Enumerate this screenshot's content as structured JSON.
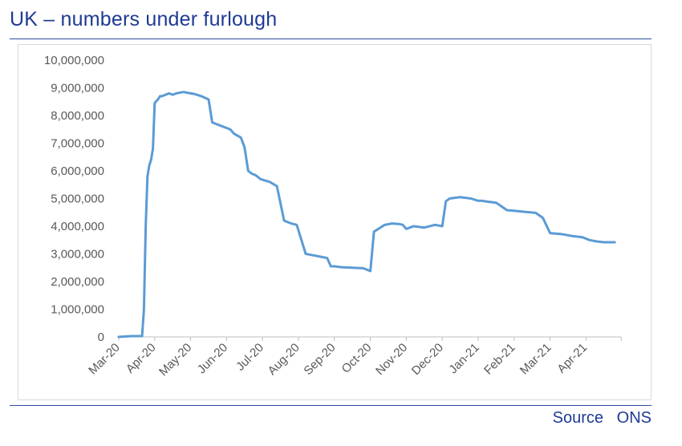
{
  "header": {
    "title": "UK – numbers under furlough"
  },
  "footer": {
    "source": "Source   ONS"
  },
  "chart_data": {
    "type": "line",
    "title": "UK – numbers under furlough",
    "xlabel": "",
    "ylabel": "",
    "ylim": [
      0,
      10000000
    ],
    "yticks": [
      0,
      1000000,
      2000000,
      3000000,
      4000000,
      5000000,
      6000000,
      7000000,
      8000000,
      9000000,
      10000000
    ],
    "ytick_labels": [
      "0",
      "1,000,000",
      "2,000,000",
      "3,000,000",
      "4,000,000",
      "5,000,000",
      "6,000,000",
      "7,000,000",
      "8,000,000",
      "9,000,000",
      "10,000,000"
    ],
    "xtick_labels": [
      "Mar-20",
      "Apr-20",
      "May-20",
      "Jun-20",
      "Jul-20",
      "Aug-20",
      "Sep-20",
      "Oct-20",
      "Nov-20",
      "Dec-20",
      "Jan-21",
      "Feb-21",
      "Mar-21",
      "Apr-21"
    ],
    "grid": false,
    "legend": "none",
    "line_color": "#5b9bd5",
    "series": [
      {
        "x": [
          0.0,
          0.35,
          0.65,
          0.7,
          0.75,
          0.8,
          0.85,
          0.9,
          0.95,
          1.0,
          1.1,
          1.15,
          1.2,
          1.3,
          1.4,
          1.5,
          1.6,
          1.8,
          2.0,
          2.1,
          2.3,
          2.5,
          2.6,
          2.8,
          2.9,
          3.0,
          3.1,
          3.2,
          3.4,
          3.5,
          3.6,
          3.7,
          3.8,
          3.85,
          3.9,
          3.95,
          4.2,
          4.4,
          4.6,
          4.8,
          4.95,
          5.0,
          5.2,
          5.4,
          5.6,
          5.8,
          5.9,
          6.0,
          6.2,
          6.5,
          6.8,
          7.0,
          7.1,
          7.4,
          7.6,
          7.8,
          7.9,
          8.0,
          8.1,
          8.2,
          8.5,
          8.8,
          9.0,
          9.1,
          9.2,
          9.5,
          9.8,
          10.0,
          10.1,
          10.2,
          10.3,
          10.5,
          10.8,
          11.0,
          11.3,
          11.6,
          11.8,
          12.0,
          12.3,
          12.6,
          12.9,
          13.0,
          13.1,
          13.3,
          13.5,
          13.8
        ],
        "y": [
          0,
          30000,
          30000,
          1000000,
          4000000,
          5800000,
          6200000,
          6400000,
          6800000,
          8450000,
          8600000,
          8700000,
          8700000,
          8750000,
          8800000,
          8750000,
          8800000,
          8850000,
          8800000,
          8780000,
          8700000,
          8580000,
          7750000,
          7650000,
          7600000,
          7550000,
          7500000,
          7350000,
          7200000,
          6850000,
          6000000,
          5900000,
          5850000,
          5800000,
          5750000,
          5700000,
          5600000,
          5450000,
          4200000,
          4100000,
          4050000,
          3850000,
          3000000,
          2950000,
          2900000,
          2850000,
          2550000,
          2550000,
          2520000,
          2500000,
          2480000,
          2380000,
          3800000,
          4050000,
          4100000,
          4080000,
          4050000,
          3900000,
          3950000,
          4000000,
          3950000,
          4050000,
          4000000,
          4900000,
          5000000,
          5050000,
          5000000,
          4920000,
          4920000,
          4900000,
          4880000,
          4850000,
          4580000,
          4560000,
          4520000,
          4480000,
          4300000,
          3750000,
          3720000,
          3650000,
          3600000,
          3550000,
          3500000,
          3450000,
          3420000,
          3420000
        ]
      }
    ]
  }
}
